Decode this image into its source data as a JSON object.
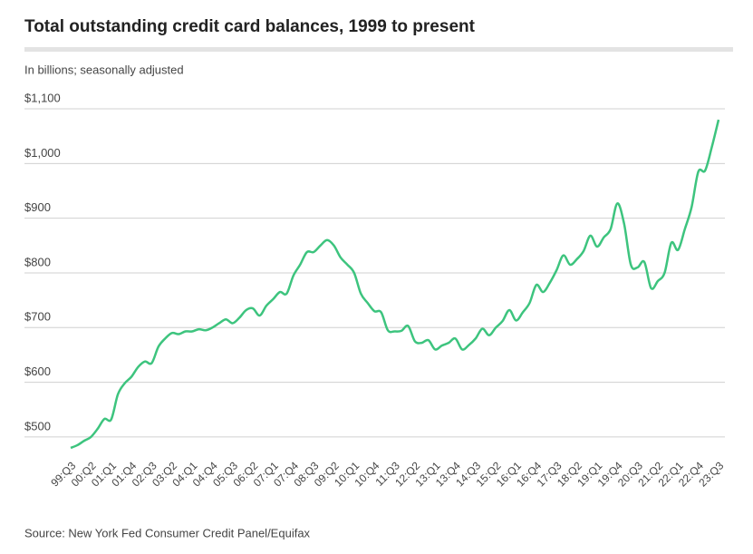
{
  "chart_data": {
    "type": "line",
    "title": "Total outstanding credit card balances, 1999 to present",
    "subtitle": "In billions; seasonally adjusted",
    "source": "Source: New York Fed Consumer Credit Panel/Equifax",
    "categories": [
      "99:Q3",
      null,
      null,
      "00:Q2",
      null,
      null,
      "01:Q1",
      null,
      null,
      "01:Q4",
      null,
      null,
      "02:Q3",
      null,
      null,
      "03:Q2",
      null,
      null,
      "04:Q1",
      null,
      null,
      "04:Q4",
      null,
      null,
      "05:Q3",
      null,
      null,
      "06:Q2",
      null,
      null,
      "07:Q1",
      null,
      null,
      "07:Q4",
      null,
      null,
      "08:Q3",
      null,
      null,
      "09:Q2",
      null,
      null,
      "10:Q1",
      null,
      null,
      "10:Q4",
      null,
      null,
      "11:Q3",
      null,
      null,
      "12:Q2",
      null,
      null,
      "13:Q1",
      null,
      null,
      "13:Q4",
      null,
      null,
      "14:Q3",
      null,
      null,
      "15:Q2",
      null,
      null,
      "16:Q1",
      null,
      null,
      "16:Q4",
      null,
      null,
      "17:Q3",
      null,
      null,
      "18:Q2",
      null,
      null,
      "19:Q1",
      null,
      null,
      "19:Q4",
      null,
      null,
      "20:Q3",
      null,
      null,
      "21:Q2",
      null,
      null,
      "22:Q1",
      null,
      null,
      "22:Q4",
      null,
      null,
      "23:Q3"
    ],
    "values": [
      480,
      485,
      493,
      500,
      515,
      533,
      532,
      578,
      598,
      610,
      628,
      638,
      635,
      665,
      680,
      690,
      688,
      693,
      693,
      697,
      695,
      700,
      708,
      715,
      708,
      718,
      732,
      735,
      722,
      740,
      752,
      765,
      762,
      795,
      815,
      838,
      838,
      850,
      860,
      850,
      828,
      815,
      800,
      762,
      745,
      730,
      728,
      695,
      693,
      694,
      703,
      675,
      672,
      677,
      660,
      667,
      672,
      680,
      660,
      668,
      680,
      698,
      686,
      700,
      712,
      732,
      713,
      728,
      745,
      778,
      765,
      782,
      805,
      832,
      815,
      825,
      840,
      868,
      848,
      865,
      880,
      927,
      890,
      815,
      810,
      820,
      772,
      785,
      800,
      855,
      842,
      880,
      920,
      985,
      987,
      1030,
      1080
    ],
    "color": "#3dc47e",
    "ylim": [
      470,
      1100
    ],
    "yticks": [
      {
        "value": 500,
        "label": "$500"
      },
      {
        "value": 600,
        "label": "$600"
      },
      {
        "value": 700,
        "label": "$700"
      },
      {
        "value": 800,
        "label": "$800"
      },
      {
        "value": 900,
        "label": "$900"
      },
      {
        "value": 1000,
        "label": "$1,000"
      },
      {
        "value": 1100,
        "label": "$1,100"
      }
    ],
    "grid": true
  }
}
